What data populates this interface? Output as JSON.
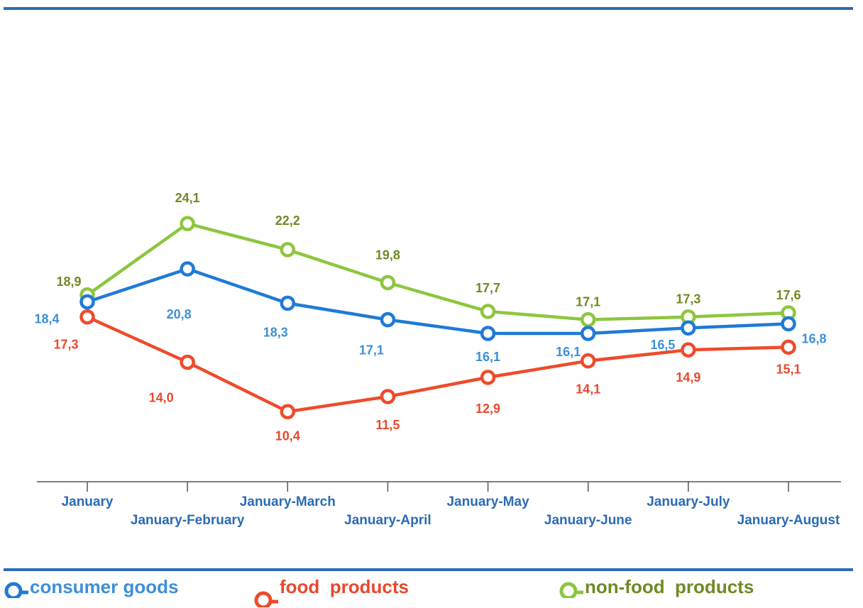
{
  "chart_data": {
    "type": "line",
    "categories": [
      "January",
      "January-February",
      "January-March",
      "January-April",
      "January-May",
      "January-June",
      "January-July",
      "January-August"
    ],
    "series": [
      {
        "name": "non-food  products",
        "color": "#8dc63f",
        "label_color": "#6e8a23",
        "values": [
          18.9,
          24.1,
          22.2,
          19.8,
          17.7,
          17.1,
          17.3,
          17.6
        ],
        "labels": [
          "18,9",
          "24,1",
          "22,2",
          "19,8",
          "17,7",
          "17,1",
          "17,3",
          "17,6"
        ]
      },
      {
        "name": "consumer goods",
        "color": "#1f7ad6",
        "label_color": "#3d8fd8",
        "values": [
          18.4,
          20.8,
          18.3,
          17.1,
          16.1,
          16.1,
          16.5,
          16.8
        ],
        "labels": [
          "18,4",
          "20,8",
          "18,3",
          "17,1",
          "16,1",
          "16,1",
          "16,5",
          "16,8"
        ]
      },
      {
        "name": "food  products",
        "color": "#ee4b2b",
        "label_color": "#e8492c",
        "values": [
          17.3,
          14.0,
          10.4,
          11.5,
          12.9,
          14.1,
          14.9,
          15.1
        ],
        "labels": [
          "17,3",
          "14,0",
          "10,4",
          "11,5",
          "12,9",
          "14,1",
          "14,9",
          "15,1"
        ]
      }
    ],
    "axis_label_color": "#2c6bb4",
    "axis_color": "#555555",
    "rule_color": "#2c6bb4",
    "grid": false,
    "legend_position": "bottom"
  }
}
